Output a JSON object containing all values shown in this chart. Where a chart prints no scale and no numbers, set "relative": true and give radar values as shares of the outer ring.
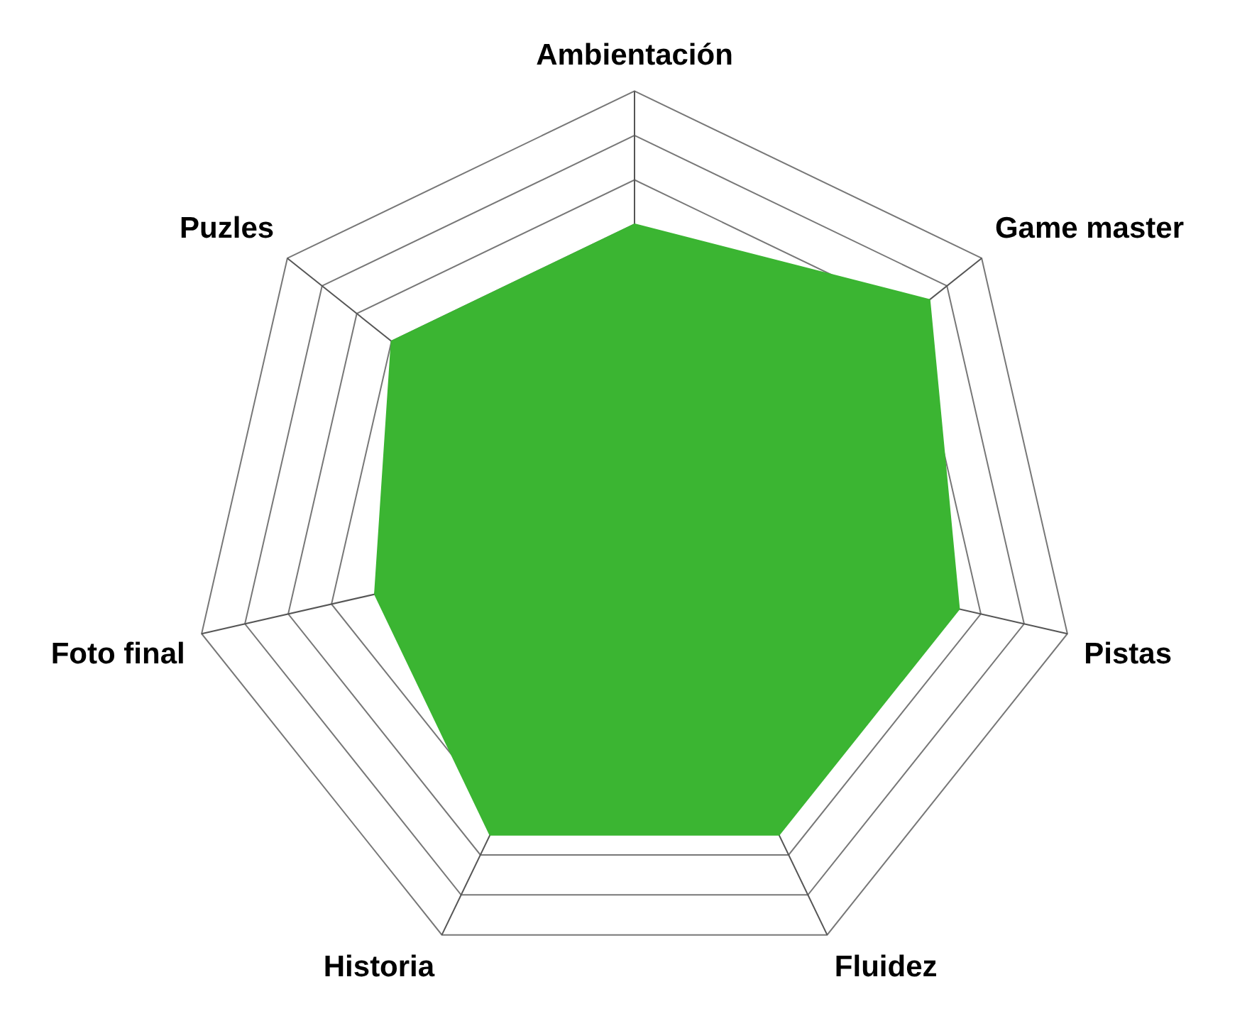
{
  "chart_data": {
    "type": "radar",
    "relative": true,
    "categories": [
      "Ambientación",
      "Game master",
      "Pistas",
      "Fluidez",
      "Historia",
      "Foto final",
      "Puzles"
    ],
    "series": [
      {
        "color": "#3bb532",
        "values": [
          0.7,
          0.85,
          0.75,
          0.75,
          0.75,
          0.6,
          0.7
        ]
      }
    ],
    "grid": true,
    "legend": false,
    "marker": "none"
  }
}
